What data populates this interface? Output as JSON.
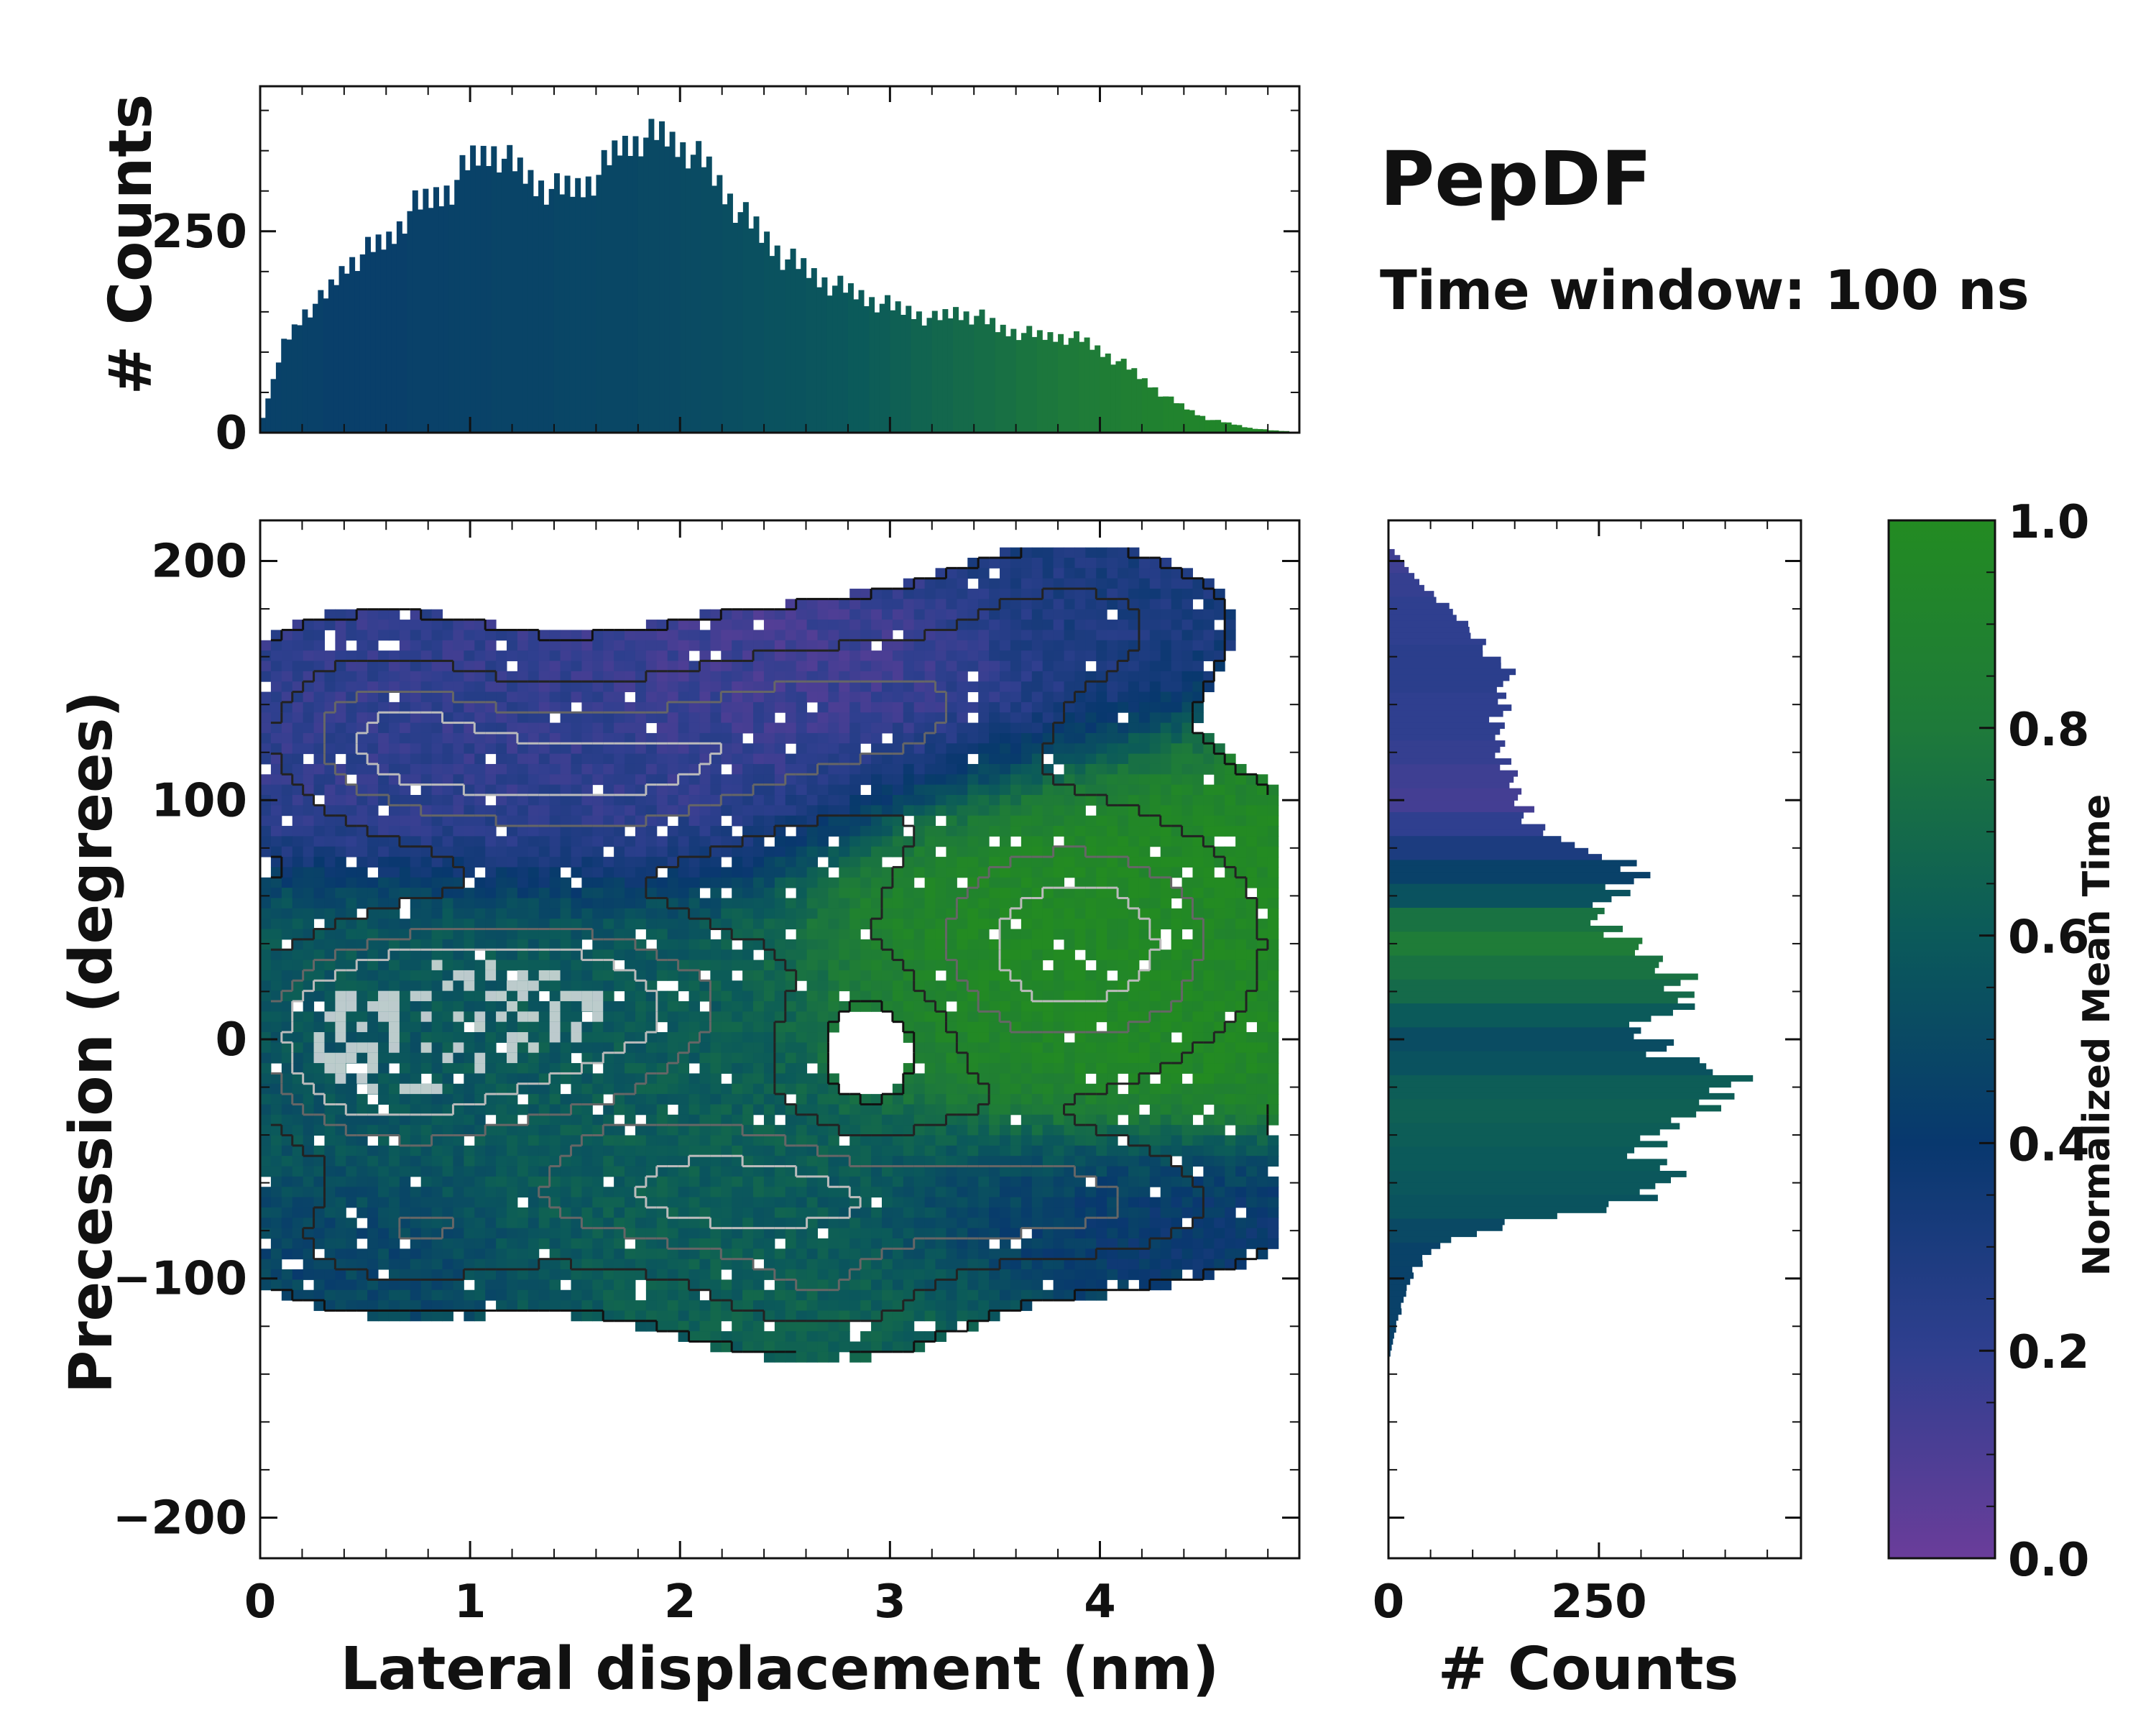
{
  "figure": {
    "title": "PepDF",
    "subtitle": "Time window: 100 ns"
  },
  "colormap": [
    "#6a3d9a",
    "#2f3f8f",
    "#08386e",
    "#0b5a5a",
    "#1e7a3a",
    "#238b22"
  ],
  "chart_data": [
    {
      "id": "top-histogram",
      "type": "bar",
      "ylabel": "# Counts",
      "xlim": [
        0,
        4.95
      ],
      "ylim": [
        0,
        430
      ],
      "yticks": [
        0,
        250
      ],
      "bins": [
        {
          "x": 0.05,
          "count": 20,
          "c": 0.45
        },
        {
          "x": 0.15,
          "count": 110,
          "c": 0.46
        },
        {
          "x": 0.25,
          "count": 150,
          "c": 0.45
        },
        {
          "x": 0.35,
          "count": 170,
          "c": 0.44
        },
        {
          "x": 0.45,
          "count": 210,
          "c": 0.44
        },
        {
          "x": 0.55,
          "count": 225,
          "c": 0.44
        },
        {
          "x": 0.65,
          "count": 240,
          "c": 0.44
        },
        {
          "x": 0.75,
          "count": 275,
          "c": 0.45
        },
        {
          "x": 0.85,
          "count": 290,
          "c": 0.45
        },
        {
          "x": 0.95,
          "count": 305,
          "c": 0.46
        },
        {
          "x": 1.05,
          "count": 340,
          "c": 0.46
        },
        {
          "x": 1.15,
          "count": 350,
          "c": 0.47
        },
        {
          "x": 1.25,
          "count": 330,
          "c": 0.47
        },
        {
          "x": 1.35,
          "count": 310,
          "c": 0.47
        },
        {
          "x": 1.45,
          "count": 300,
          "c": 0.48
        },
        {
          "x": 1.55,
          "count": 305,
          "c": 0.48
        },
        {
          "x": 1.65,
          "count": 320,
          "c": 0.49
        },
        {
          "x": 1.75,
          "count": 355,
          "c": 0.49
        },
        {
          "x": 1.85,
          "count": 365,
          "c": 0.5
        },
        {
          "x": 1.95,
          "count": 370,
          "c": 0.5
        },
        {
          "x": 2.05,
          "count": 355,
          "c": 0.51
        },
        {
          "x": 2.15,
          "count": 335,
          "c": 0.52
        },
        {
          "x": 2.25,
          "count": 300,
          "c": 0.53
        },
        {
          "x": 2.35,
          "count": 265,
          "c": 0.54
        },
        {
          "x": 2.45,
          "count": 240,
          "c": 0.55
        },
        {
          "x": 2.55,
          "count": 215,
          "c": 0.56
        },
        {
          "x": 2.65,
          "count": 200,
          "c": 0.57
        },
        {
          "x": 2.75,
          "count": 185,
          "c": 0.58
        },
        {
          "x": 2.85,
          "count": 175,
          "c": 0.6
        },
        {
          "x": 2.95,
          "count": 165,
          "c": 0.62
        },
        {
          "x": 3.05,
          "count": 155,
          "c": 0.64
        },
        {
          "x": 3.15,
          "count": 150,
          "c": 0.66
        },
        {
          "x": 3.25,
          "count": 140,
          "c": 0.68
        },
        {
          "x": 3.35,
          "count": 150,
          "c": 0.7
        },
        {
          "x": 3.45,
          "count": 145,
          "c": 0.72
        },
        {
          "x": 3.55,
          "count": 130,
          "c": 0.74
        },
        {
          "x": 3.65,
          "count": 125,
          "c": 0.76
        },
        {
          "x": 3.75,
          "count": 120,
          "c": 0.78
        },
        {
          "x": 3.85,
          "count": 120,
          "c": 0.8
        },
        {
          "x": 3.95,
          "count": 115,
          "c": 0.82
        },
        {
          "x": 4.05,
          "count": 100,
          "c": 0.84
        },
        {
          "x": 4.15,
          "count": 85,
          "c": 0.86
        },
        {
          "x": 4.25,
          "count": 65,
          "c": 0.88
        },
        {
          "x": 4.35,
          "count": 45,
          "c": 0.9
        },
        {
          "x": 4.45,
          "count": 30,
          "c": 0.92
        },
        {
          "x": 4.55,
          "count": 17,
          "c": 0.93
        },
        {
          "x": 4.65,
          "count": 12,
          "c": 0.94
        },
        {
          "x": 4.75,
          "count": 6,
          "c": 0.95
        },
        {
          "x": 4.85,
          "count": 3,
          "c": 0.95
        }
      ]
    },
    {
      "id": "main-heatmap",
      "type": "heatmap",
      "xlabel": "Lateral displacement (nm)",
      "ylabel": "Precession (degrees)",
      "xlim": [
        0,
        4.95
      ],
      "ylim": [
        -217,
        217
      ],
      "xticks": [
        0,
        1,
        2,
        3,
        4
      ],
      "yticks": [
        -200,
        -100,
        0,
        100,
        200
      ],
      "ytick_labels": [
        "−200",
        "−100",
        "0",
        "100",
        "200"
      ],
      "clusters": [
        {
          "cx": 0.55,
          "cy": 130,
          "sx": 0.45,
          "sy": 28,
          "c": 0.2,
          "w": 0.8
        },
        {
          "cx": 1.6,
          "cy": 110,
          "sx": 0.75,
          "sy": 28,
          "c": 0.2,
          "w": 1.0
        },
        {
          "cx": 2.9,
          "cy": 140,
          "sx": 0.7,
          "sy": 25,
          "c": 0.12,
          "w": 0.8
        },
        {
          "cx": 3.9,
          "cy": 175,
          "sx": 0.45,
          "sy": 20,
          "c": 0.3,
          "w": 0.6
        },
        {
          "cx": 1.3,
          "cy": 15,
          "sx": 0.85,
          "sy": 30,
          "c": 0.6,
          "w": 1.3
        },
        {
          "cx": 0.5,
          "cy": -10,
          "sx": 0.45,
          "sy": 30,
          "c": 0.55,
          "w": 0.9
        },
        {
          "cx": 2.2,
          "cy": -65,
          "sx": 0.9,
          "sy": 28,
          "c": 0.62,
          "w": 1.1
        },
        {
          "cx": 3.9,
          "cy": 40,
          "sx": 0.7,
          "sy": 45,
          "c": 0.97,
          "w": 1.2
        },
        {
          "cx": 3.9,
          "cy": -70,
          "sx": 0.65,
          "sy": 20,
          "c": 0.35,
          "w": 0.7
        },
        {
          "cx": 0.6,
          "cy": -85,
          "sx": 0.45,
          "sy": 18,
          "c": 0.45,
          "w": 0.6
        },
        {
          "cx": 2.7,
          "cy": -110,
          "sx": 0.4,
          "sy": 15,
          "c": 0.65,
          "w": 0.5
        }
      ],
      "hole": {
        "cx": 2.9,
        "cy": -5,
        "sx": 0.22,
        "sy": 22
      },
      "grid": {
        "nx": 95,
        "ny": 80
      }
    },
    {
      "id": "right-histogram",
      "type": "bar",
      "orientation": "horizontal",
      "xlabel": "# Counts",
      "xlim": [
        0,
        490
      ],
      "xticks": [
        0,
        250
      ],
      "ylim": [
        -217,
        217
      ],
      "bins": [
        {
          "y": 200,
          "count": 8,
          "c": 0.15
        },
        {
          "y": 190,
          "count": 30,
          "c": 0.18
        },
        {
          "y": 180,
          "count": 60,
          "c": 0.2
        },
        {
          "y": 170,
          "count": 90,
          "c": 0.2
        },
        {
          "y": 160,
          "count": 115,
          "c": 0.22
        },
        {
          "y": 150,
          "count": 140,
          "c": 0.22
        },
        {
          "y": 140,
          "count": 140,
          "c": 0.2
        },
        {
          "y": 130,
          "count": 130,
          "c": 0.2
        },
        {
          "y": 120,
          "count": 135,
          "c": 0.18
        },
        {
          "y": 110,
          "count": 140,
          "c": 0.15
        },
        {
          "y": 100,
          "count": 150,
          "c": 0.13
        },
        {
          "y": 90,
          "count": 165,
          "c": 0.2
        },
        {
          "y": 80,
          "count": 190,
          "c": 0.3
        },
        {
          "y": 70,
          "count": 295,
          "c": 0.45
        },
        {
          "y": 60,
          "count": 280,
          "c": 0.55
        },
        {
          "y": 50,
          "count": 250,
          "c": 0.75
        },
        {
          "y": 40,
          "count": 270,
          "c": 0.82
        },
        {
          "y": 30,
          "count": 310,
          "c": 0.75
        },
        {
          "y": 20,
          "count": 355,
          "c": 0.7
        },
        {
          "y": 10,
          "count": 340,
          "c": 0.6
        },
        {
          "y": 0,
          "count": 300,
          "c": 0.52
        },
        {
          "y": -10,
          "count": 330,
          "c": 0.55
        },
        {
          "y": -20,
          "count": 425,
          "c": 0.62
        },
        {
          "y": -30,
          "count": 385,
          "c": 0.64
        },
        {
          "y": -40,
          "count": 330,
          "c": 0.62
        },
        {
          "y": -50,
          "count": 300,
          "c": 0.6
        },
        {
          "y": -60,
          "count": 330,
          "c": 0.58
        },
        {
          "y": -70,
          "count": 320,
          "c": 0.56
        },
        {
          "y": -80,
          "count": 150,
          "c": 0.5
        },
        {
          "y": -90,
          "count": 60,
          "c": 0.46
        },
        {
          "y": -100,
          "count": 30,
          "c": 0.45
        },
        {
          "y": -110,
          "count": 20,
          "c": 0.45
        },
        {
          "y": -120,
          "count": 12,
          "c": 0.45
        },
        {
          "y": -130,
          "count": 5,
          "c": 0.45
        }
      ]
    },
    {
      "id": "colorbar",
      "type": "colorbar",
      "label": "Normalized Mean Time",
      "range": [
        0,
        1
      ],
      "ticks": [
        0,
        0.2,
        0.4,
        0.6,
        0.8,
        1
      ],
      "tick_labels": [
        "0.0",
        "0.2",
        "0.4",
        "0.6",
        "0.8",
        "1.0"
      ]
    }
  ]
}
